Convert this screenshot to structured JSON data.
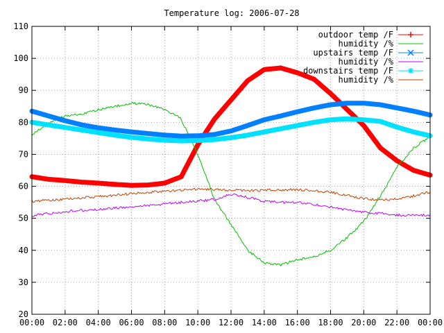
{
  "chart_data": {
    "type": "line",
    "title": "Temperature log: 2006-07-28",
    "xlabel": "",
    "ylabel": "",
    "ylim": [
      20,
      110
    ],
    "xlim": [
      "00:00",
      "24:00"
    ],
    "grid": true,
    "legend_position": "top-right",
    "x_ticks": [
      "00:00",
      "02:00",
      "04:00",
      "06:00",
      "08:00",
      "10:00",
      "12:00",
      "14:00",
      "16:00",
      "18:00",
      "20:00",
      "22:00",
      "00:00"
    ],
    "y_ticks": [
      20,
      30,
      40,
      50,
      60,
      70,
      80,
      90,
      100,
      110
    ],
    "x": [
      "00:00",
      "01:00",
      "02:00",
      "03:00",
      "04:00",
      "05:00",
      "06:00",
      "07:00",
      "08:00",
      "09:00",
      "10:00",
      "11:00",
      "12:00",
      "13:00",
      "14:00",
      "15:00",
      "16:00",
      "17:00",
      "18:00",
      "19:00",
      "20:00",
      "21:00",
      "22:00",
      "23:00",
      "24:00"
    ],
    "series": [
      {
        "name": "outdoor temp /F",
        "color": "#ff0000",
        "marker": "plus",
        "values": [
          63,
          62.2,
          61.8,
          61.3,
          61,
          60.6,
          60.3,
          60.4,
          61,
          63,
          73,
          81,
          87,
          93,
          96.5,
          97,
          95.5,
          93.5,
          89,
          84,
          79,
          72,
          68,
          65,
          63.5
        ]
      },
      {
        "name": "humidity /%",
        "color": "#00c000",
        "marker": "none",
        "values": [
          76,
          80,
          82,
          82.5,
          84,
          85,
          86,
          85.5,
          84,
          81,
          70,
          56,
          48,
          40,
          36,
          35.5,
          37,
          38,
          40,
          44,
          49,
          57,
          66,
          72,
          75.5
        ]
      },
      {
        "name": "upstairs temp /F",
        "color": "#0080ff",
        "marker": "cross",
        "values": [
          83.5,
          82,
          80.5,
          79.2,
          78.3,
          77.6,
          77,
          76.5,
          76,
          75.7,
          75.8,
          76.2,
          77.3,
          79,
          80.8,
          82,
          83.3,
          84.5,
          85.5,
          86,
          86,
          85.5,
          84.5,
          83.5,
          82.3
        ]
      },
      {
        "name": "humidity /%",
        "color": "#c000ff",
        "marker": "none",
        "values": [
          50.8,
          51.5,
          52.1,
          52.5,
          52.8,
          53.2,
          53.6,
          54,
          54.5,
          55,
          55.4,
          55.8,
          57.5,
          56.5,
          55.3,
          55,
          55,
          54.3,
          53.5,
          52.6,
          52,
          51.5,
          51,
          51,
          51
        ]
      },
      {
        "name": "downstairs temp /F",
        "color": "#00e0ff",
        "marker": "star",
        "values": [
          80,
          79.2,
          78.4,
          77.6,
          76.8,
          76,
          75.3,
          74.8,
          74.4,
          74.2,
          74.3,
          74.6,
          75.2,
          76,
          77,
          78,
          79,
          80,
          80.8,
          81.1,
          80.8,
          80.3,
          78.5,
          77,
          75.8
        ]
      },
      {
        "name": "humidity /%",
        "color": "#c04000",
        "marker": "none",
        "values": [
          55.3,
          55.6,
          56,
          56.4,
          56.8,
          57.2,
          57.7,
          58.1,
          58.5,
          58.8,
          59.2,
          59,
          58.8,
          58.7,
          58.8,
          58.9,
          59,
          58.6,
          58.2,
          57.2,
          56.2,
          55.6,
          56,
          57,
          58.3
        ]
      }
    ]
  }
}
